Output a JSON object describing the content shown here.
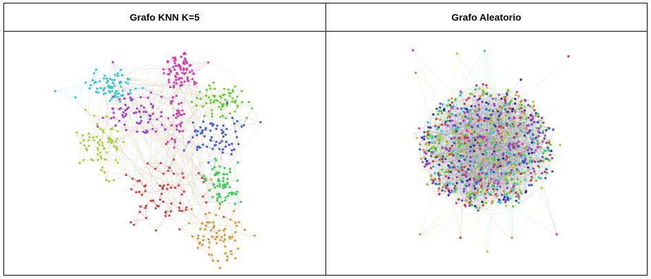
{
  "panels": [
    {
      "title": "Grafo KNN K=5",
      "graph_type": "knn",
      "clusters": [
        {
          "color": "#d63aa8"
        },
        {
          "color": "#2fc6d0"
        },
        {
          "color": "#9c3fcf"
        },
        {
          "color": "#a6cf3a"
        },
        {
          "color": "#6acc3a"
        },
        {
          "color": "#3a5ad6"
        },
        {
          "color": "#3acc55"
        },
        {
          "color": "#d63a3a"
        },
        {
          "color": "#d4963a"
        }
      ]
    },
    {
      "title": "Grafo Aleatorio",
      "graph_type": "random",
      "palette": [
        "#d63a3a",
        "#3a5ad6",
        "#6acc3a",
        "#d63aa8",
        "#2fc6d0",
        "#d4963a",
        "#9c3fcf",
        "#a6cf3a",
        "#3acc55",
        "#2e2ea8"
      ]
    }
  ],
  "edge_color": "#c9b79a"
}
